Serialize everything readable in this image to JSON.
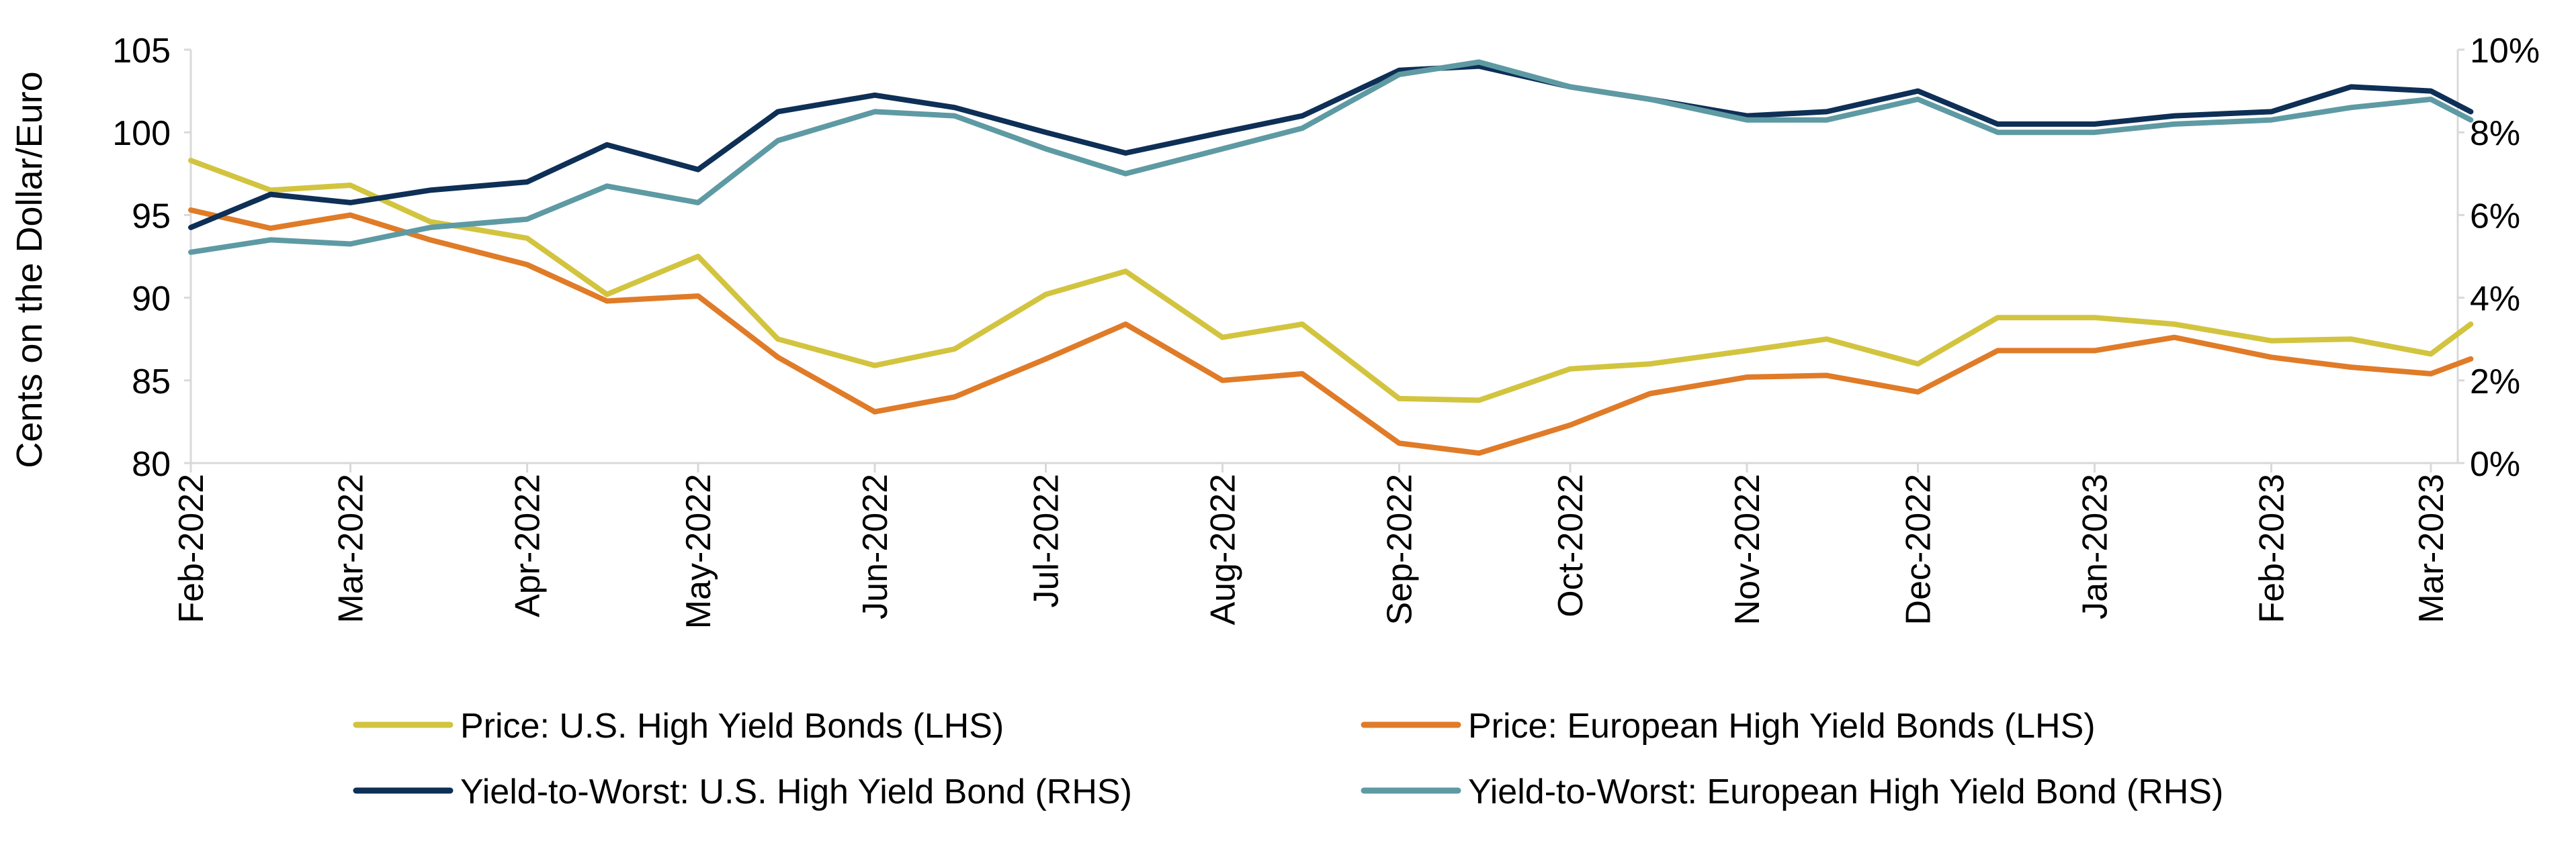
{
  "chart_data": {
    "type": "line",
    "title": "",
    "ylabel_left": "Cents on the Dollar/Euro",
    "ylabel_right": "",
    "ylim_left": [
      80,
      105
    ],
    "ylim_right": [
      0,
      10
    ],
    "yticks_left": [
      "80",
      "85",
      "90",
      "95",
      "100",
      "105"
    ],
    "yticks_right": [
      "0%",
      "2%",
      "4%",
      "6%",
      "8%",
      "10%"
    ],
    "x_tick_labels": [
      "Feb-2022",
      "Mar-2022",
      "Apr-2022",
      "May-2022",
      "Jun-2022",
      "Jul-2022",
      "Aug-2022",
      "Sep-2022",
      "Oct-2022",
      "Nov-2022",
      "Dec-2022",
      "Jan-2023",
      "Feb-2023",
      "Mar-2023"
    ],
    "grid": false,
    "legend_position": "bottom",
    "x": [
      "2022-02-01",
      "2022-02-15",
      "2022-03-01",
      "2022-03-15",
      "2022-04-01",
      "2022-04-15",
      "2022-05-01",
      "2022-05-15",
      "2022-06-01",
      "2022-06-15",
      "2022-07-01",
      "2022-07-15",
      "2022-08-01",
      "2022-08-15",
      "2022-09-01",
      "2022-09-15",
      "2022-10-01",
      "2022-10-15",
      "2022-11-01",
      "2022-11-15",
      "2022-12-01",
      "2022-12-15",
      "2023-01-01",
      "2023-01-15",
      "2023-02-01",
      "2023-02-15",
      "2023-03-01",
      "2023-03-08"
    ],
    "series": [
      {
        "name": "Price: U.S. High Yield Bonds (LHS)",
        "axis": "left",
        "color": "#d2c43f",
        "values": [
          98.3,
          96.5,
          96.8,
          94.6,
          93.6,
          90.2,
          92.5,
          87.5,
          85.9,
          86.9,
          90.2,
          91.6,
          87.6,
          88.4,
          83.9,
          83.8,
          85.7,
          86.0,
          86.8,
          87.5,
          86.0,
          88.8,
          88.8,
          88.4,
          87.4,
          87.5,
          86.6,
          88.4
        ]
      },
      {
        "name": "Price: European High Yield Bonds (LHS)",
        "axis": "left",
        "color": "#e07b28",
        "values": [
          95.3,
          94.2,
          95.0,
          93.5,
          92.0,
          89.8,
          90.1,
          86.4,
          83.1,
          84.0,
          86.3,
          88.4,
          85.0,
          85.4,
          81.2,
          80.6,
          82.3,
          84.2,
          85.2,
          85.3,
          84.3,
          86.8,
          86.8,
          87.6,
          86.4,
          85.8,
          85.4,
          86.3
        ]
      },
      {
        "name": "Yield-to-Worst: U.S. High Yield Bond (RHS)",
        "axis": "right",
        "color": "#0e2f56",
        "values": [
          5.7,
          6.5,
          6.3,
          6.6,
          6.8,
          7.7,
          7.1,
          8.5,
          8.9,
          8.6,
          8.0,
          7.5,
          8.0,
          8.4,
          9.5,
          9.6,
          9.1,
          8.8,
          8.4,
          8.5,
          9.0,
          8.2,
          8.2,
          8.4,
          8.5,
          9.1,
          9.0,
          8.5
        ]
      },
      {
        "name": "Yield-to-Worst: European High Yield Bond (RHS)",
        "axis": "right",
        "color": "#5e9aa3",
        "values": [
          5.1,
          5.4,
          5.3,
          5.7,
          5.9,
          6.7,
          6.3,
          7.8,
          8.5,
          8.4,
          7.6,
          7.0,
          7.6,
          8.1,
          9.4,
          9.7,
          9.1,
          8.8,
          8.3,
          8.3,
          8.8,
          8.0,
          8.0,
          8.2,
          8.3,
          8.6,
          8.8,
          8.3
        ]
      }
    ]
  }
}
